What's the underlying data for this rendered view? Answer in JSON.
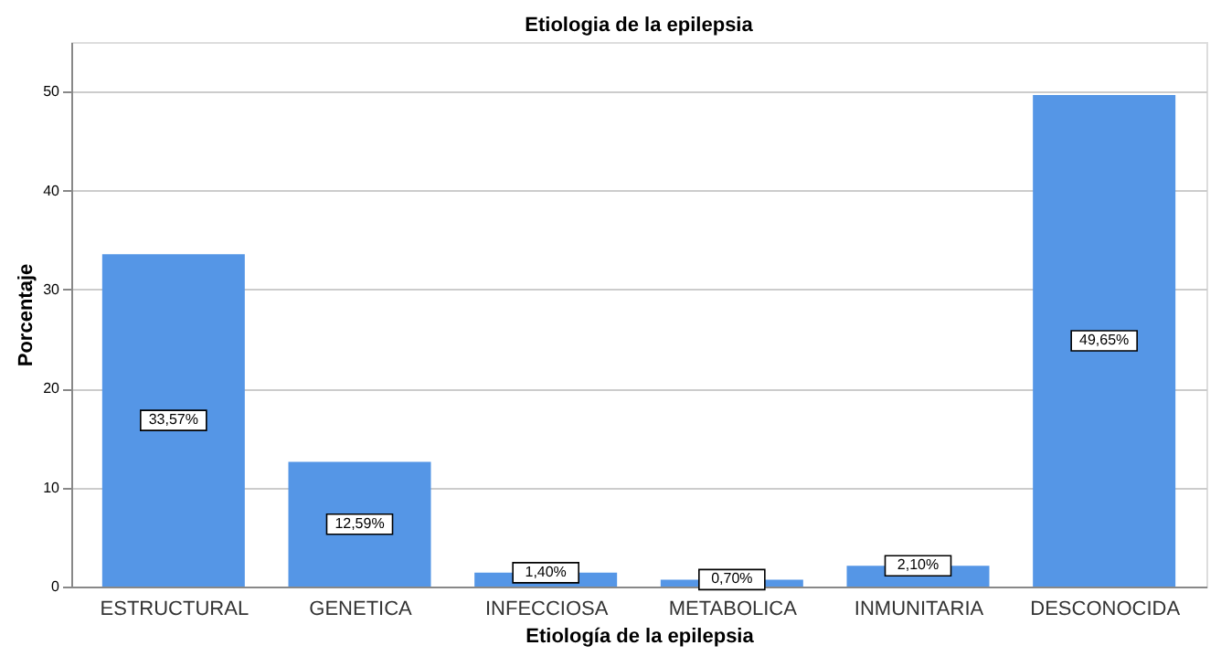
{
  "chart_data": {
    "type": "bar",
    "title": "Etiologia de la epilepsia",
    "xlabel": "Etiología de la epilepsia",
    "ylabel": "Porcentaje",
    "categories": [
      "ESTRUCTURAL",
      "GENETICA",
      "INFECCIOSA",
      "METABOLICA",
      "INMUNITARIA",
      "DESCONOCIDA"
    ],
    "values": [
      33.57,
      12.59,
      1.4,
      0.7,
      2.1,
      49.65
    ],
    "value_labels": [
      "33,57%",
      "12,59%",
      "1,40%",
      "0,70%",
      "2,10%",
      "49,65%"
    ],
    "color": "#5596e6",
    "ylim": [
      0,
      55
    ],
    "yticks": [
      0,
      10,
      20,
      30,
      40,
      50
    ],
    "grid": "y"
  }
}
